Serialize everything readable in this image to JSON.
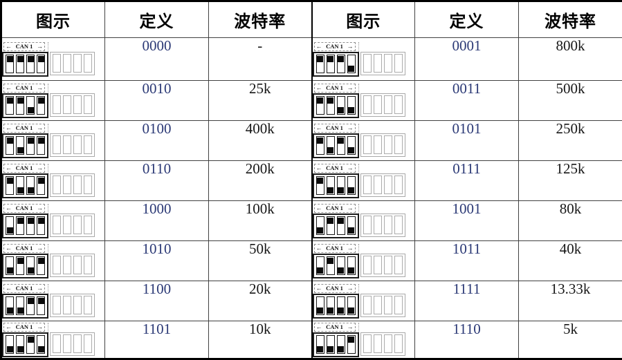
{
  "table": {
    "headers": [
      "图示",
      "定义",
      "波特率",
      "图示",
      "定义",
      "波特率"
    ],
    "diagram": {
      "arrow_left": "←",
      "label": "CAN 1",
      "arrow_right": "→"
    },
    "rows": [
      {
        "left": {
          "code": "0000",
          "baud": "-"
        },
        "right": {
          "code": "0001",
          "baud": "800k"
        }
      },
      {
        "left": {
          "code": "0010",
          "baud": "25k"
        },
        "right": {
          "code": "0011",
          "baud": "500k"
        }
      },
      {
        "left": {
          "code": "0100",
          "baud": "400k"
        },
        "right": {
          "code": "0101",
          "baud": "250k"
        }
      },
      {
        "left": {
          "code": "0110",
          "baud": "200k"
        },
        "right": {
          "code": "0111",
          "baud": "125k"
        }
      },
      {
        "left": {
          "code": "1000",
          "baud": "100k"
        },
        "right": {
          "code": "1001",
          "baud": "80k"
        }
      },
      {
        "left": {
          "code": "1010",
          "baud": "50k"
        },
        "right": {
          "code": "1011",
          "baud": "40k"
        }
      },
      {
        "left": {
          "code": "1100",
          "baud": "20k"
        },
        "right": {
          "code": "1111",
          "baud": "13.33k"
        }
      },
      {
        "left": {
          "code": "1101",
          "baud": "10k"
        },
        "right": {
          "code": "1110",
          "baud": "5k"
        }
      }
    ]
  },
  "colors": {
    "definition_text": "#2a3875",
    "baud_text": "#161616",
    "border_inner": "#404040",
    "border_outer": "#000000",
    "switch_knob": "#0a0a0a"
  }
}
